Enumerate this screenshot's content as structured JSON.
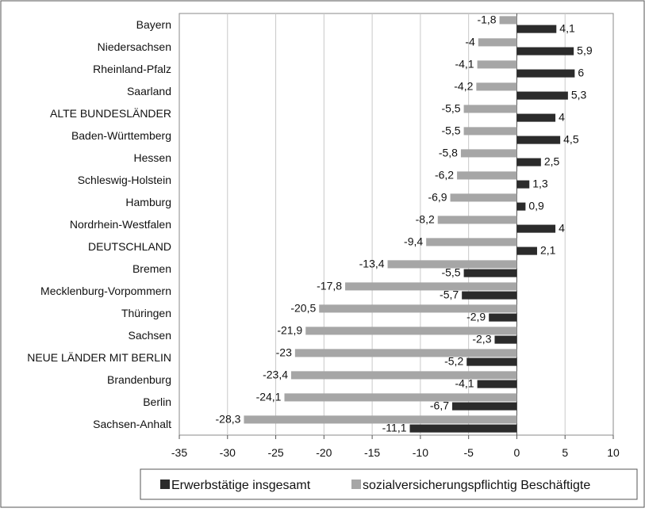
{
  "chart_data": {
    "type": "bar",
    "orientation": "horizontal",
    "categories": [
      "Bayern",
      "Niedersachsen",
      "Rheinland-Pfalz",
      "Saarland",
      "ALTE BUNDESLÄNDER",
      "Baden-Württemberg",
      "Hessen",
      "Schleswig-Holstein",
      "Hamburg",
      "Nordrhein-Westfalen",
      "DEUTSCHLAND",
      "Bremen",
      "Mecklenburg-Vorpommern",
      "Thüringen",
      "Sachsen",
      "NEUE LÄNDER MIT BERLIN",
      "Brandenburg",
      "Berlin",
      "Sachsen-Anhalt"
    ],
    "series": [
      {
        "name": "Erwerbstätige insgesamt",
        "color": "#2b2b2b",
        "values": [
          4.1,
          5.9,
          6,
          5.3,
          4,
          4.5,
          2.5,
          1.3,
          0.9,
          4,
          2.1,
          -5.5,
          -5.7,
          -2.9,
          -2.3,
          -5.2,
          -4.1,
          -6.7,
          -11.1
        ],
        "labels": [
          "4,1",
          "5,9",
          "6",
          "5,3",
          "4",
          "4,5",
          "2,5",
          "1,3",
          "0,9",
          "4",
          "2,1",
          "-5,5",
          "-5,7",
          "-2,9",
          "-2,3",
          "-5,2",
          "-4,1",
          "-6,7",
          "-11,1"
        ]
      },
      {
        "name": "sozialversicherungspflichtig Beschäftigte",
        "color": "#a6a6a6",
        "values": [
          -1.8,
          -4,
          -4.1,
          -4.2,
          -5.5,
          -5.5,
          -5.8,
          -6.2,
          -6.9,
          -8.2,
          -9.4,
          -13.4,
          -17.8,
          -20.5,
          -21.9,
          -23,
          -23.4,
          -24.1,
          -28.3
        ],
        "labels": [
          "-1,8",
          "-4",
          "-4,1",
          "-4,2",
          "-5,5",
          "-5,5",
          "-5,8",
          "-6,2",
          "-6,9",
          "-8,2",
          "-9,4",
          "-13,4",
          "-17,8",
          "-20,5",
          "-21,9",
          "-23",
          "-23,4",
          "-24,1",
          "-28,3"
        ]
      }
    ],
    "xlim": [
      -35,
      10
    ],
    "xticks": [
      -35,
      -30,
      -25,
      -20,
      -15,
      -10,
      -5,
      0,
      5,
      10
    ],
    "xtick_labels": [
      "-35",
      "-30",
      "-25",
      "-20",
      "-15",
      "-10",
      "-5",
      "0",
      "5",
      "10"
    ],
    "grid": "vertical",
    "legend_position": "bottom",
    "title": "",
    "xlabel": "",
    "ylabel": ""
  }
}
